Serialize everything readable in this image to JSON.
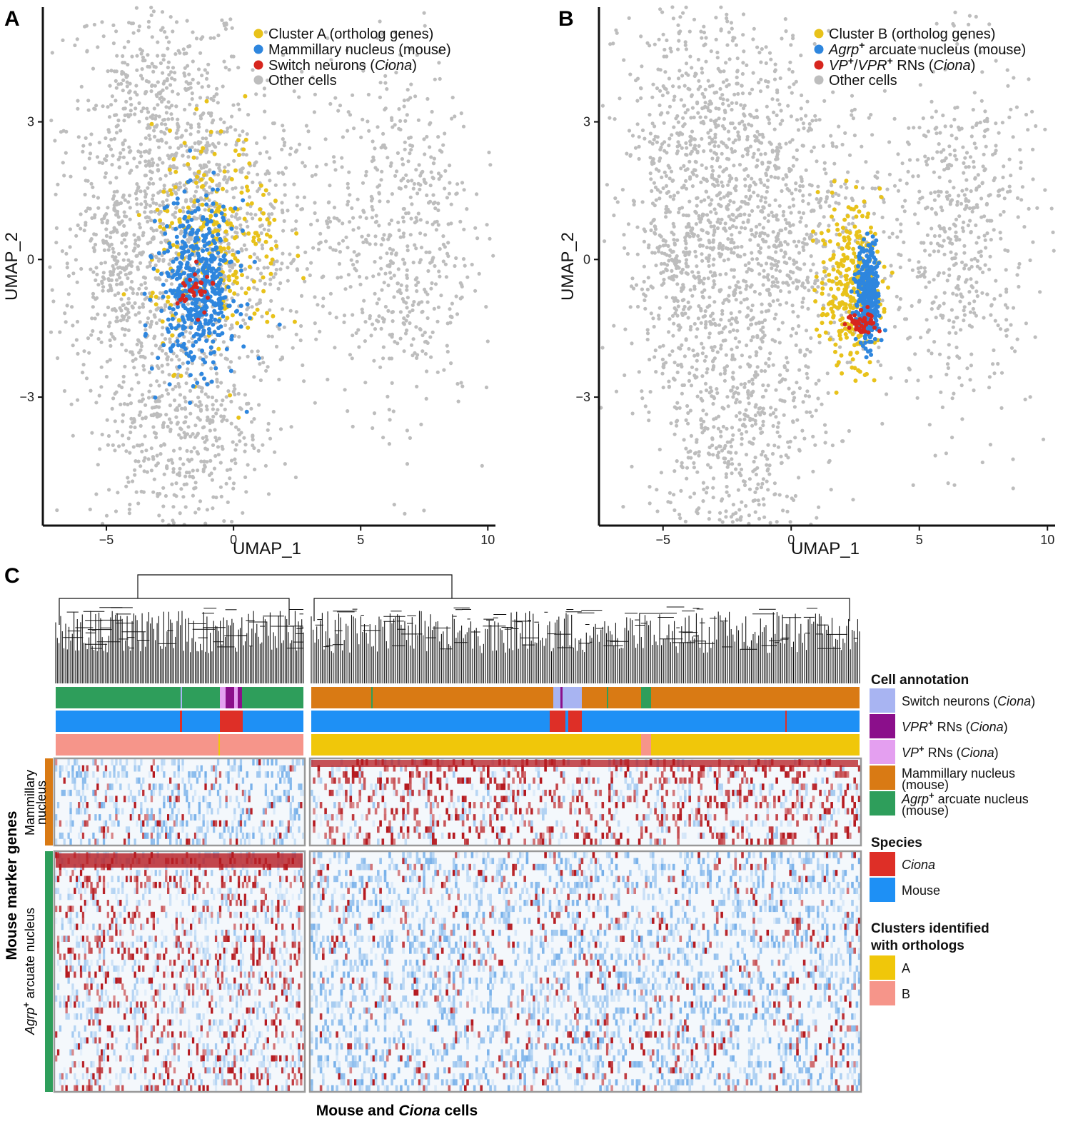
{
  "figure": {
    "panels": {
      "a": "A",
      "b": "B",
      "c": "C"
    }
  },
  "chart_data": [
    {
      "type": "scatter",
      "panel": "A",
      "xlabel": "UMAP_1",
      "ylabel": "UMAP_2",
      "xlim": [
        -7.5,
        10.3
      ],
      "ylim": [
        -5.8,
        5.5
      ],
      "xticks": [
        -5,
        0,
        5,
        10
      ],
      "yticks": [
        -3,
        0,
        3
      ],
      "xtick_labels": [
        "−5",
        "0",
        "5",
        "10"
      ],
      "ytick_labels": [
        "−3",
        "0",
        "3"
      ],
      "legend_placement": "top-right",
      "grid": false,
      "background_cluster": {
        "color": "#bdbdbd",
        "regions": [
          {
            "name": "upper-left lobe",
            "center": [
              -3.0,
              2.9
            ],
            "spread": [
              1.8,
              1.5
            ],
            "weight": 0.22
          },
          {
            "name": "left lobe",
            "center": [
              -4.6,
              -0.4
            ],
            "spread": [
              0.9,
              1.0
            ],
            "weight": 0.08
          },
          {
            "name": "central body",
            "center": [
              -0.8,
              0.3
            ],
            "spread": [
              2.4,
              1.6
            ],
            "weight": 0.3
          },
          {
            "name": "lower lobe",
            "center": [
              -2.2,
              -3.6
            ],
            "spread": [
              1.7,
              1.4
            ],
            "weight": 0.2
          },
          {
            "name": "right lobe",
            "center": [
              6.6,
              0.6
            ],
            "spread": [
              1.4,
              2.0
            ],
            "weight": 0.2
          }
        ]
      },
      "series": [
        {
          "name": "Cluster A (ortholog genes)",
          "color": "#e8c21a",
          "center": [
            -0.6,
            0.3
          ],
          "spread": [
            1.3,
            1.2
          ],
          "count": 260
        },
        {
          "name": "Mammillary nucleus (mouse)",
          "color": "#2e86de",
          "center": [
            -1.4,
            -0.6
          ],
          "spread": [
            0.75,
            0.9
          ],
          "count": 520
        },
        {
          "name": "Switch neurons (Ciona)",
          "color": "#d7261e",
          "center": [
            -1.5,
            -0.7
          ],
          "spread": [
            0.35,
            0.25
          ],
          "count": 32
        },
        {
          "name": "Other cells",
          "color": "#bdbdbd"
        }
      ],
      "legend": [
        {
          "label": "Cluster A (ortholog genes)",
          "color": "#e8c21a"
        },
        {
          "label": "Mammillary nucleus (mouse)",
          "color": "#2e86de"
        },
        {
          "label": "Switch neurons (Ciona)",
          "italic_part": "Ciona",
          "color": "#d7261e"
        },
        {
          "label": "Other cells",
          "color": "#bdbdbd"
        }
      ]
    },
    {
      "type": "scatter",
      "panel": "B",
      "xlabel": "UMAP_1",
      "ylabel": "UMAP_2",
      "xlim": [
        -7.5,
        10.3
      ],
      "ylim": [
        -5.8,
        5.5
      ],
      "xticks": [
        -5,
        0,
        5,
        10
      ],
      "yticks": [
        -3,
        0,
        3
      ],
      "xtick_labels": [
        "−5",
        "0",
        "5",
        "10"
      ],
      "ytick_labels": [
        "−3",
        "0",
        "3"
      ],
      "legend_placement": "top-right",
      "grid": false,
      "series": [
        {
          "name": "Cluster B (ortholog genes)",
          "color": "#e8c21a",
          "center": [
            2.3,
            -0.6
          ],
          "spread": [
            0.6,
            0.9
          ],
          "count": 300
        },
        {
          "name": "Agrp+ arcuate nucleus (mouse)",
          "color": "#2e86de",
          "center": [
            3.0,
            -0.8
          ],
          "spread": [
            0.22,
            0.55
          ],
          "count": 360
        },
        {
          "name": "VP+/VPR+ RNs (Ciona)",
          "color": "#d7261e",
          "center": [
            2.8,
            -1.4
          ],
          "spread": [
            0.3,
            0.15
          ],
          "count": 45
        },
        {
          "name": "Other cells",
          "color": "#bdbdbd"
        }
      ],
      "legend": [
        {
          "label": "Cluster B (ortholog genes)",
          "color": "#e8c21a"
        },
        {
          "label": "Agrp+ arcuate nucleus (mouse)",
          "color": "#2e86de"
        },
        {
          "label": "VP+/VPR+ RNs (Ciona)",
          "color": "#d7261e"
        },
        {
          "label": "Other cells",
          "color": "#bdbdbd"
        }
      ]
    },
    {
      "type": "heatmap",
      "panel": "C",
      "xlabel_bold_prefix": "Mouse and ",
      "xlabel_italic": "Ciona",
      "xlabel_suffix": " cells",
      "ylabel": "Mouse marker genes",
      "row_groups": [
        {
          "label": "Mammillary nucleus",
          "color": "#d97a14",
          "rows": 14
        },
        {
          "label": "Agrp+ arcuate nucleus",
          "color": "#2e9e5b",
          "rows": 40
        }
      ],
      "column_groups": [
        {
          "name": "left block",
          "columns": 330,
          "dominant_annotation": "Agrp+ arcuate nucleus (mouse)",
          "cluster": "B"
        },
        {
          "name": "right block",
          "columns": 720,
          "dominant_annotation": "Mammillary nucleus (mouse)",
          "cluster": "A"
        }
      ],
      "color_scale": {
        "low": "#2e86de",
        "mid": "#ffffff",
        "high": "#b5191f"
      },
      "annotation_tracks": [
        "Cell annotation",
        "Species",
        "Clusters identified with orthologs"
      ],
      "legend": {
        "cell_annotation": {
          "title": "Cell annotation",
          "items": [
            {
              "label_prefix": "Switch neurons (",
              "label_italic": "Ciona",
              "label_suffix": ")",
              "color": "#a8b4f2"
            },
            {
              "label_italic": "VPR",
              "label_sup": "+",
              "label_suffix": " RNs (",
              "label_italic2": "Ciona",
              "label_suffix2": ")",
              "color": "#8b0f8b"
            },
            {
              "label_italic": "VP",
              "label_sup": "+",
              "label_suffix": " RNs (",
              "label_italic2": "Ciona",
              "label_suffix2": ")",
              "color": "#e49ff0"
            },
            {
              "label_line1": "Mammillary nucleus",
              "label_line2": "(mouse)",
              "color": "#d97a14"
            },
            {
              "label_italic": "Agrp",
              "label_sup": "+",
              "label_line1_suffix": " arcuate nucleus",
              "label_line2": "(mouse)",
              "color": "#2e9e5b"
            }
          ]
        },
        "species": {
          "title": "Species",
          "items": [
            {
              "label": "Ciona",
              "italic": true,
              "color": "#de2f27"
            },
            {
              "label": "Mouse",
              "italic": false,
              "color": "#1e90f5"
            }
          ]
        },
        "clusters": {
          "title_line1": "Clusters identified",
          "title_line2": "with orthologs",
          "items": [
            {
              "label": "A",
              "color": "#f0c70a"
            },
            {
              "label": "B",
              "color": "#f6958a"
            }
          ]
        }
      }
    }
  ]
}
